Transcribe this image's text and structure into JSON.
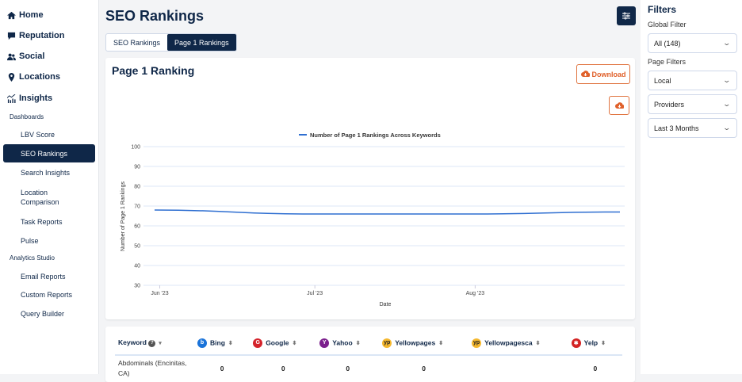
{
  "sidebar": {
    "main": [
      {
        "label": "Home",
        "icon": "home-icon"
      },
      {
        "label": "Reputation",
        "icon": "comment-icon"
      },
      {
        "label": "Social",
        "icon": "users-icon"
      },
      {
        "label": "Locations",
        "icon": "map-pin-icon"
      },
      {
        "label": "Insights",
        "icon": "chart-icon"
      }
    ],
    "dashboards_label": "Dashboards",
    "dashboards": [
      "LBV Score",
      "SEO Rankings",
      "Search Insights",
      "Location Comparison",
      "Task Reports",
      "Pulse"
    ],
    "studio_label": "Analytics Studio",
    "studio": [
      "Email Reports",
      "Custom Reports",
      "Query Builder"
    ],
    "active": "SEO Rankings"
  },
  "page": {
    "title": "SEO Rankings",
    "tabs": [
      "SEO Rankings",
      "Page 1 Rankings"
    ],
    "active_tab": "Page 1 Rankings"
  },
  "card": {
    "title": "Page 1 Ranking",
    "download_label": "Download",
    "accent": "#e0602a"
  },
  "chart_data": {
    "type": "line",
    "legend": "Number of Page 1 Rankings Across Keywords",
    "legend_position": "top",
    "xlabel": "Date",
    "ylabel": "Number of Page 1 Rankings",
    "ylim": [
      30,
      100
    ],
    "yticks": [
      30,
      40,
      50,
      60,
      70,
      80,
      90,
      100
    ],
    "xticks": [
      {
        "date": "2023-06-01",
        "label": "Jun '23"
      },
      {
        "date": "2023-07-01",
        "label": "Jul '23"
      },
      {
        "date": "2023-08-01",
        "label": "Aug '23"
      }
    ],
    "grid": true,
    "color": "#2f6fd1",
    "series": [
      {
        "name": "Number of Page 1 Rankings Across Keywords",
        "points": [
          {
            "x": "2023-05-31",
            "y": 68
          },
          {
            "x": "2023-06-30",
            "y": 66
          },
          {
            "x": "2023-07-31",
            "y": 66
          },
          {
            "x": "2023-08-29",
            "y": 67
          }
        ]
      }
    ]
  },
  "table": {
    "keyword_header": "Keyword",
    "providers": [
      {
        "name": "Bing",
        "color": "#1a73d9",
        "glyph": "b"
      },
      {
        "name": "Google",
        "color": "#d4232b",
        "glyph": "G"
      },
      {
        "name": "Yahoo",
        "color": "#7b1f8c",
        "glyph": "Y"
      },
      {
        "name": "Yellowpages",
        "color": "#f5b82e",
        "glyph": "yp"
      },
      {
        "name": "Yellowpagesca",
        "color": "#f5b82e",
        "glyph": "yp"
      },
      {
        "name": "Yelp",
        "color": "#d32323",
        "glyph": "✱"
      }
    ],
    "rows": [
      {
        "keyword": "Abdominals (Encinitas, CA)",
        "values": [
          "0",
          "0",
          "0",
          "0",
          "",
          "0"
        ]
      }
    ]
  },
  "filters": {
    "title": "Filters",
    "global_label": "Global Filter",
    "global_value": "All (148)",
    "page_label": "Page Filters",
    "page_values": [
      "Local",
      "Providers",
      "Last 3 Months"
    ]
  }
}
